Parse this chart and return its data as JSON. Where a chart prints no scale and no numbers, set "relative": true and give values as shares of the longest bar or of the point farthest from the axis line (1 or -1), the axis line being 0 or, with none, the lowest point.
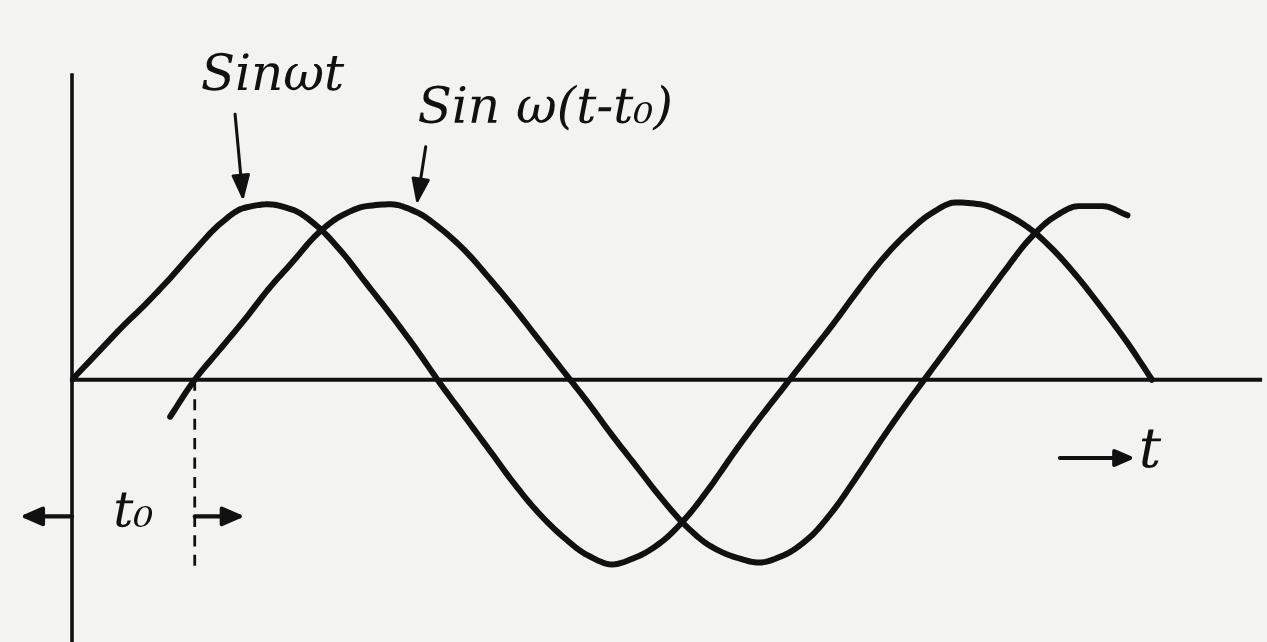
{
  "chart_data": {
    "type": "line",
    "relative": true,
    "line_style": "solid",
    "xlabel": "t",
    "annotations": [
      "t₀"
    ],
    "categories": [
      null,
      null,
      null,
      null,
      null,
      null,
      null,
      null,
      null,
      null,
      null,
      null,
      null,
      null,
      null,
      null,
      null,
      null,
      null,
      null,
      null,
      null,
      null,
      null,
      null,
      null,
      null,
      null,
      null,
      null,
      null,
      null,
      null,
      null,
      null,
      null,
      null,
      null,
      null,
      null,
      null,
      null,
      null,
      null,
      null
    ],
    "series": [
      {
        "name": "Sinωt",
        "color": "#111111",
        "values": [
          0,
          0.14,
          0.28,
          0.41,
          0.55,
          0.7,
          0.84,
          0.93,
          0.95,
          0.92,
          0.83,
          0.69,
          0.52,
          0.35,
          0.17,
          -0.02,
          -0.2,
          -0.38,
          -0.56,
          -0.72,
          -0.85,
          -0.95,
          -1,
          -0.96,
          -0.88,
          -0.75,
          -0.58,
          -0.39,
          -0.21,
          -0.04,
          0.13,
          0.3,
          0.48,
          0.65,
          0.79,
          0.9,
          0.96,
          0.95,
          0.9,
          0.82,
          0.7,
          0.55,
          0.38,
          0.2,
          0
        ]
      },
      {
        "name": "Sin ω(t-t₀)",
        "color": "#111111",
        "values": [
          null,
          null,
          null,
          null,
          -0.2,
          0,
          0.16,
          0.32,
          0.49,
          0.64,
          0.79,
          0.89,
          0.94,
          0.95,
          0.91,
          0.82,
          0.7,
          0.55,
          0.39,
          0.22,
          0.05,
          -0.12,
          -0.3,
          -0.47,
          -0.64,
          -0.79,
          -0.9,
          -0.96,
          -0.99,
          -0.95,
          -0.86,
          -0.71,
          -0.52,
          -0.32,
          -0.13,
          0.05,
          0.23,
          0.41,
          0.59,
          0.76,
          0.88,
          0.94,
          0.94,
          0.89,
          null
        ]
      }
    ]
  }
}
